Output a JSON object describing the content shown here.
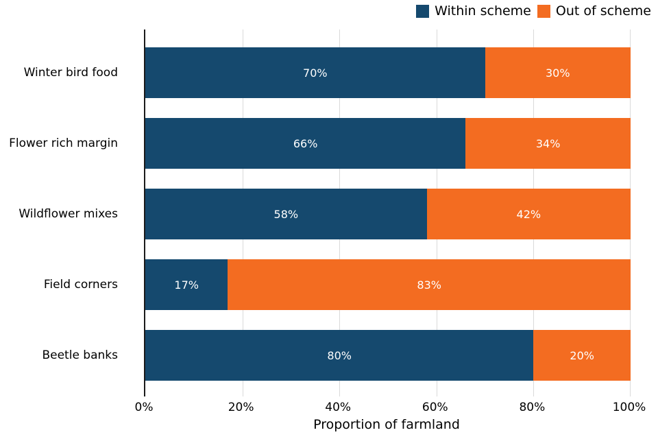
{
  "chart_data": {
    "type": "bar",
    "orientation": "horizontal",
    "stacked": true,
    "title": "",
    "xlabel": "Proportion of farmland",
    "ylabel": "",
    "xlim": [
      0,
      100
    ],
    "grid": "vertical",
    "legend_position": "top-right",
    "categories": [
      "Winter bird food",
      "Flower rich margin",
      "Wildflower mixes",
      "Field corners",
      "Beetle banks"
    ],
    "series": [
      {
        "name": "Within scheme",
        "color": "#15496E",
        "values": [
          70,
          66,
          58,
          17,
          80
        ]
      },
      {
        "name": "Out of scheme",
        "color": "#F36C21",
        "values": [
          30,
          34,
          42,
          83,
          20
        ]
      }
    ],
    "bar_labels": [
      [
        "70%",
        "30%"
      ],
      [
        "66%",
        "34%"
      ],
      [
        "58%",
        "42%"
      ],
      [
        "17%",
        "83%"
      ],
      [
        "80%",
        "20%"
      ]
    ],
    "xticks": [
      "0%",
      "20%",
      "40%",
      "60%",
      "80%",
      "100%"
    ]
  },
  "colors": {
    "within_scheme": "#15496E",
    "out_of_scheme": "#F36C21",
    "gridline": "#D9D9D9",
    "axis_spine": "#1A1A1A",
    "bar_label_text": "#FFFFFF",
    "background": "#FFFFFF"
  }
}
